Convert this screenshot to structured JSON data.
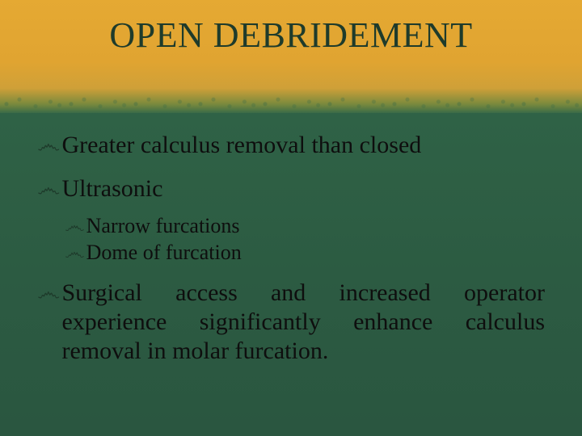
{
  "colors": {
    "title_text": "#1e3b2b",
    "body_text": "#0e0e0e",
    "bullet_glyph": "#1e3b2b",
    "title_band_top": "#e5a933",
    "title_band_bottom": "#3a6b47",
    "body_band_top": "#2f6246",
    "body_band_bottom": "#2a5640"
  },
  "typography": {
    "title_fontsize": 44,
    "l1_fontsize": 30,
    "l2_fontsize": 26,
    "family": "Georgia, serif"
  },
  "bullet_glyph": "෴",
  "title": "OPEN DEBRIDEMENT",
  "bullets": {
    "b1": "Greater calculus removal than closed",
    "b2": "Ultrasonic",
    "b2_children": {
      "c1": "Narrow furcations",
      "c2": "Dome of furcation"
    },
    "b3": "Surgical access and increased operator experience significantly enhance calculus removal in molar furcation."
  }
}
